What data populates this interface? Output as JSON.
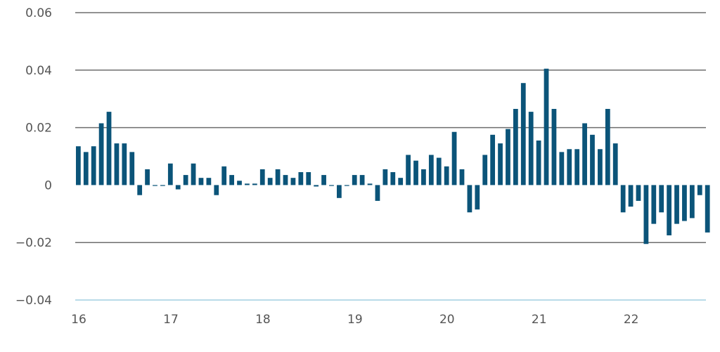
{
  "chart_data": {
    "type": "bar",
    "title": "",
    "xlabel": "",
    "ylabel": "",
    "ylim": [
      -0.04,
      0.06
    ],
    "yticks": [
      0.06,
      0.04,
      0.02,
      0,
      -0.02,
      -0.04
    ],
    "ytick_labels": [
      "0.06",
      "0.04",
      "0.02",
      "0",
      "−0.02",
      "−0.04"
    ],
    "xlim": [
      16,
      22.85
    ],
    "xticks": [
      16,
      17,
      18,
      19,
      20,
      21,
      22
    ],
    "xtick_labels": [
      "16",
      "17",
      "18",
      "19",
      "20",
      "21",
      "22"
    ],
    "grid": true,
    "bar_color": "#0b5479",
    "grid_color": "#6e6e6e",
    "bottom_line_color": "#b9dbe8",
    "series": [
      {
        "x": [
          16.0,
          16.0833,
          16.1667,
          16.25,
          16.3333,
          16.4167,
          16.5,
          16.5833,
          16.6667,
          16.75,
          16.8333,
          16.9167,
          17.0,
          17.0833,
          17.1667,
          17.25,
          17.3333,
          17.4167,
          17.5,
          17.5833,
          17.6667,
          17.75,
          17.8333,
          17.9167,
          18.0,
          18.0833,
          18.1667,
          18.25,
          18.3333,
          18.4167,
          18.5,
          18.5833,
          18.6667,
          18.75,
          18.8333,
          18.9167,
          19.0,
          19.0833,
          19.1667,
          19.25,
          19.3333,
          19.4167,
          19.5,
          19.5833,
          19.6667,
          19.75,
          19.8333,
          19.9167,
          20.0,
          20.0833,
          20.1667,
          20.25,
          20.3333,
          20.4167,
          20.5,
          20.5833,
          20.6667,
          20.75,
          20.8333,
          20.9167,
          21.0,
          21.0833,
          21.1667,
          21.25,
          21.3333,
          21.4167,
          21.5,
          21.5833,
          21.6667,
          21.75,
          21.8333,
          21.9167,
          22.0,
          22.0833,
          22.1667,
          22.25,
          22.3333,
          22.4167,
          22.5,
          22.5833,
          22.6667,
          22.75,
          22.8333
        ],
        "values": [
          0.0135,
          0.0115,
          0.0135,
          0.0215,
          0.0255,
          0.0145,
          0.0145,
          0.0115,
          -0.0035,
          0.0055,
          -0.0003,
          -0.0003,
          0.0075,
          -0.0015,
          0.0035,
          0.0075,
          0.0025,
          0.0025,
          -0.0035,
          0.0065,
          0.0035,
          0.0015,
          0.0005,
          0.0005,
          0.0055,
          0.0025,
          0.0055,
          0.0035,
          0.0025,
          0.0045,
          0.0045,
          -0.0005,
          0.0035,
          -0.0003,
          -0.0045,
          -0.0003,
          0.0035,
          0.0035,
          0.0005,
          -0.0055,
          0.0055,
          0.0045,
          0.0025,
          0.0105,
          0.0085,
          0.0055,
          0.0105,
          0.0095,
          0.0065,
          0.0185,
          0.0055,
          -0.0095,
          -0.0085,
          0.0105,
          0.0175,
          0.0145,
          0.0195,
          0.0265,
          0.0355,
          0.0255,
          0.0155,
          0.0405,
          0.0265,
          0.0115,
          0.0125,
          0.0125,
          0.0215,
          0.0175,
          0.0125,
          0.0265,
          0.0145,
          -0.0095,
          -0.0075,
          -0.0055,
          -0.0205,
          -0.0135,
          -0.0095,
          -0.0175,
          -0.0135,
          -0.0125,
          -0.0115,
          -0.0035,
          -0.0165
        ]
      }
    ]
  }
}
